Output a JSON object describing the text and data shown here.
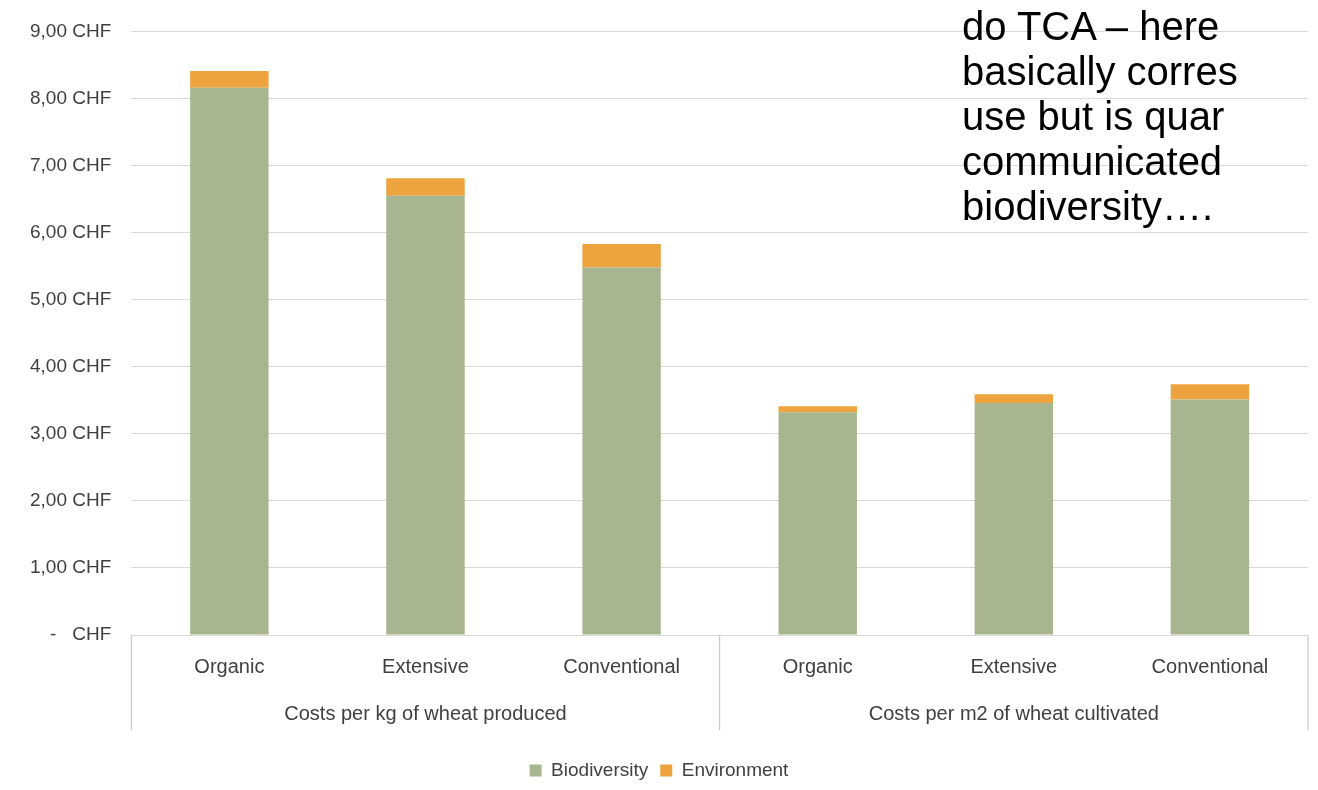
{
  "chart_data": {
    "type": "bar",
    "stacked": true,
    "categories": [
      "Organic",
      "Extensive",
      "Conventional",
      "Organic",
      "Extensive",
      "Conventional"
    ],
    "series": [
      {
        "name": "Biodiversity",
        "color": "#a7b68f",
        "values": [
          8.16,
          6.55,
          5.48,
          3.32,
          3.46,
          3.51
        ]
      },
      {
        "name": "Environment",
        "color": "#eda33e",
        "values": [
          0.25,
          0.26,
          0.35,
          0.09,
          0.13,
          0.23
        ]
      }
    ],
    "ylim": [
      0,
      9
    ],
    "yticks": [
      {
        "value": 0,
        "label": "-   CHF"
      },
      {
        "value": 1,
        "label": "1,00 CHF"
      },
      {
        "value": 2,
        "label": "2,00 CHF"
      },
      {
        "value": 3,
        "label": "3,00 CHF"
      },
      {
        "value": 4,
        "label": "4,00 CHF"
      },
      {
        "value": 5,
        "label": "5,00 CHF"
      },
      {
        "value": 6,
        "label": "6,00 CHF"
      },
      {
        "value": 7,
        "label": "7,00 CHF"
      },
      {
        "value": 8,
        "label": "8,00 CHF"
      },
      {
        "value": 9,
        "label": "9,00 CHF"
      }
    ],
    "grid": "y",
    "legend": "bottom",
    "annotations": [
      "Costs per kg of wheat produced",
      "Costs per m2 of wheat cultivated",
      "do TCA – here",
      "basically corres",
      "use but is quar",
      "communicated",
      "biodiversity…."
    ]
  }
}
